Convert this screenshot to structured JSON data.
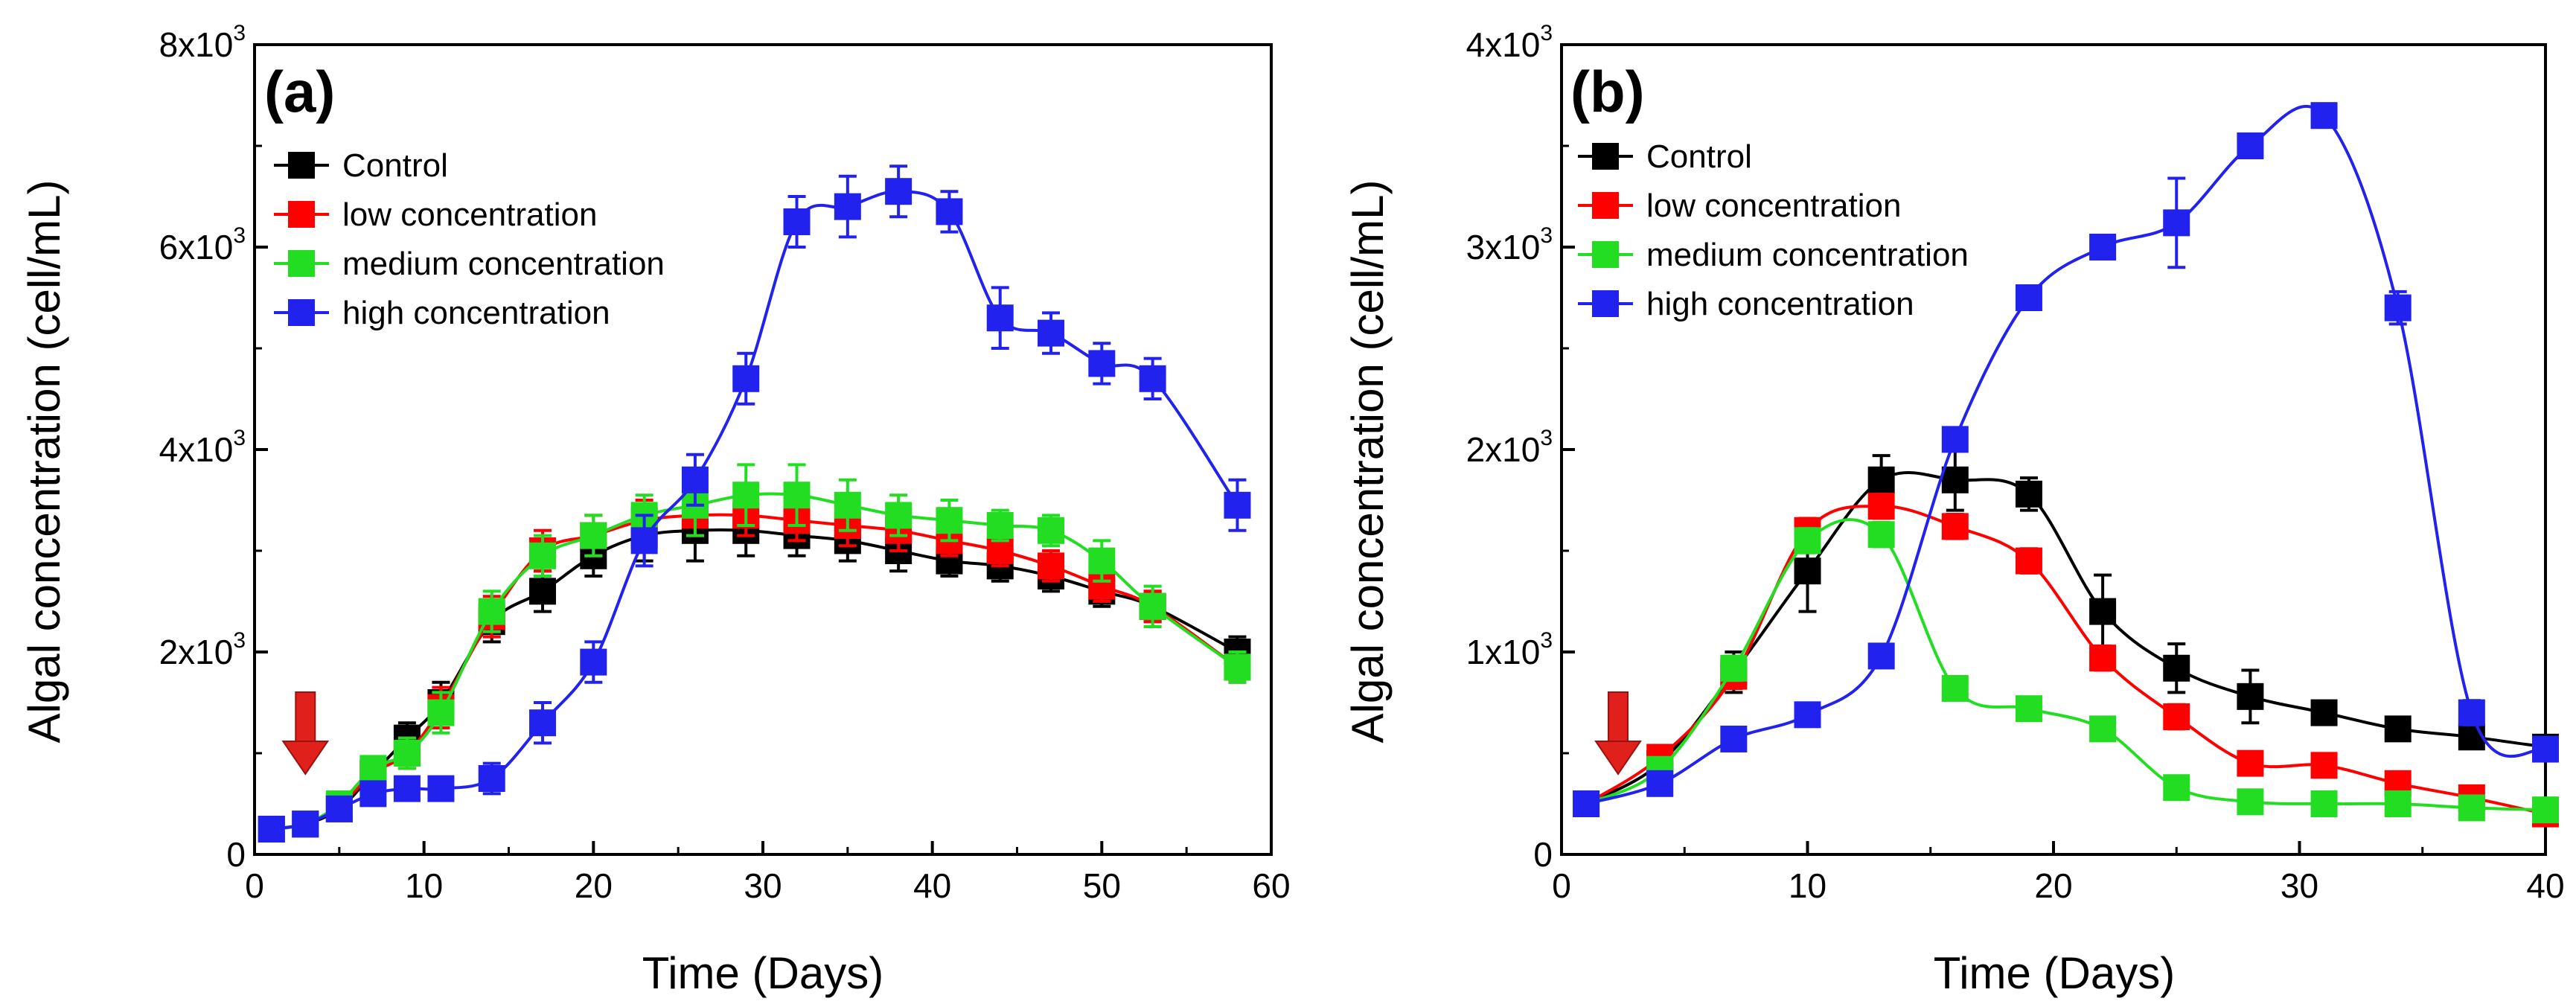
{
  "chart_data": [
    {
      "type": "line",
      "panel_label": "(a)",
      "xlabel": "Time (Days)",
      "ylabel": "Algal concentration (cell/mL)",
      "xlim": [
        0,
        60
      ],
      "ylim": [
        0,
        8000
      ],
      "x_ticks": [
        "0",
        "10",
        "20",
        "30",
        "40",
        "50",
        "60"
      ],
      "y_ticks": [
        {
          "value": 0,
          "mantissa": "0",
          "exp": ""
        },
        {
          "value": 2000,
          "mantissa": "2x10",
          "exp": "3"
        },
        {
          "value": 4000,
          "mantissa": "4x10",
          "exp": "3"
        },
        {
          "value": 6000,
          "mantissa": "6x10",
          "exp": "3"
        },
        {
          "value": 8000,
          "mantissa": "8x10",
          "exp": "3"
        }
      ],
      "grid": false,
      "legend_position": "top-left",
      "annotation": {
        "type": "arrow",
        "x": 3,
        "note": "red arrow pointing down"
      },
      "series": [
        {
          "name": "Control",
          "color": "#000000",
          "x": [
            1,
            3,
            5,
            7,
            9,
            11,
            14,
            17,
            20,
            23,
            26,
            29,
            32,
            35,
            38,
            41,
            44,
            47,
            50,
            53,
            58
          ],
          "y": [
            250,
            300,
            450,
            800,
            1150,
            1500,
            2300,
            2600,
            2950,
            3150,
            3200,
            3200,
            3150,
            3100,
            3000,
            2900,
            2850,
            2750,
            2600,
            2450,
            2000
          ],
          "err": [
            60,
            60,
            80,
            100,
            150,
            200,
            200,
            200,
            200,
            250,
            300,
            250,
            200,
            200,
            200,
            150,
            150,
            150,
            150,
            150,
            150
          ]
        },
        {
          "name": "low concentration",
          "color": "#ff0000",
          "x": [
            1,
            3,
            5,
            7,
            9,
            11,
            14,
            17,
            20,
            23,
            26,
            29,
            32,
            35,
            38,
            41,
            44,
            47,
            50,
            53,
            58
          ],
          "y": [
            250,
            300,
            480,
            800,
            1000,
            1450,
            2350,
            3000,
            3150,
            3300,
            3350,
            3350,
            3300,
            3250,
            3200,
            3100,
            3000,
            2850,
            2650,
            2450,
            1850
          ],
          "err": [
            60,
            60,
            80,
            100,
            150,
            200,
            200,
            200,
            200,
            200,
            200,
            200,
            200,
            200,
            200,
            150,
            150,
            150,
            150,
            150,
            150
          ]
        },
        {
          "name": "medium concentration",
          "color": "#22dd22",
          "x": [
            1,
            3,
            5,
            7,
            9,
            11,
            14,
            17,
            20,
            23,
            26,
            29,
            32,
            35,
            38,
            41,
            44,
            47,
            50,
            53,
            58
          ],
          "y": [
            250,
            300,
            500,
            850,
            1000,
            1400,
            2400,
            2950,
            3150,
            3350,
            3450,
            3550,
            3550,
            3450,
            3350,
            3300,
            3250,
            3200,
            2900,
            2450,
            1850
          ],
          "err": [
            60,
            60,
            80,
            100,
            150,
            200,
            200,
            200,
            200,
            200,
            300,
            300,
            300,
            250,
            200,
            200,
            150,
            150,
            200,
            200,
            150
          ]
        },
        {
          "name": "high concentration",
          "color": "#2222ee",
          "x": [
            1,
            3,
            5,
            7,
            9,
            11,
            14,
            17,
            20,
            23,
            26,
            29,
            32,
            35,
            38,
            41,
            44,
            47,
            50,
            53,
            58
          ],
          "y": [
            250,
            300,
            450,
            600,
            650,
            650,
            750,
            1300,
            1900,
            3100,
            3700,
            4700,
            6250,
            6400,
            6550,
            6350,
            5300,
            5150,
            4850,
            4700,
            3450
          ],
          "err": [
            60,
            60,
            80,
            100,
            100,
            100,
            150,
            200,
            200,
            250,
            250,
            250,
            250,
            300,
            250,
            200,
            300,
            200,
            200,
            200,
            250
          ]
        }
      ]
    },
    {
      "type": "line",
      "panel_label": "(b)",
      "xlabel": "Time (Days)",
      "ylabel": "Algal concentration (cell/mL)",
      "xlim": [
        0,
        40
      ],
      "ylim": [
        0,
        4000
      ],
      "x_ticks": [
        "0",
        "10",
        "20",
        "30",
        "40"
      ],
      "y_ticks": [
        {
          "value": 0,
          "mantissa": "0",
          "exp": ""
        },
        {
          "value": 1000,
          "mantissa": "1x10",
          "exp": "3"
        },
        {
          "value": 2000,
          "mantissa": "2x10",
          "exp": "3"
        },
        {
          "value": 3000,
          "mantissa": "3x10",
          "exp": "3"
        },
        {
          "value": 4000,
          "mantissa": "4x10",
          "exp": "3"
        }
      ],
      "grid": false,
      "legend_position": "top-left",
      "annotation": {
        "type": "arrow",
        "x": 2.3,
        "note": "red arrow pointing down"
      },
      "series": [
        {
          "name": "Control",
          "color": "#000000",
          "x": [
            1,
            4,
            7,
            10,
            13,
            16,
            19,
            22,
            25,
            28,
            31,
            34,
            37,
            40
          ],
          "y": [
            250,
            450,
            900,
            1400,
            1850,
            1850,
            1780,
            1200,
            920,
            780,
            700,
            620,
            580,
            530
          ],
          "err": [
            40,
            80,
            100,
            200,
            120,
            150,
            80,
            180,
            120,
            130,
            40,
            40,
            40,
            40
          ]
        },
        {
          "name": "low concentration",
          "color": "#ff0000",
          "x": [
            1,
            4,
            7,
            10,
            13,
            16,
            19,
            22,
            25,
            28,
            31,
            34,
            37,
            40
          ],
          "y": [
            250,
            480,
            880,
            1600,
            1720,
            1620,
            1450,
            970,
            680,
            450,
            440,
            350,
            280,
            200
          ],
          "err": [
            40,
            50,
            60,
            60,
            60,
            60,
            60,
            60,
            60,
            40,
            40,
            40,
            40,
            40
          ]
        },
        {
          "name": "medium concentration",
          "color": "#22dd22",
          "x": [
            1,
            4,
            7,
            10,
            13,
            16,
            19,
            22,
            25,
            28,
            31,
            34,
            37,
            40
          ],
          "y": [
            250,
            420,
            920,
            1550,
            1580,
            820,
            720,
            620,
            330,
            260,
            250,
            250,
            230,
            220
          ],
          "err": [
            40,
            50,
            60,
            60,
            60,
            40,
            40,
            40,
            40,
            40,
            40,
            40,
            40,
            40
          ]
        },
        {
          "name": "high concentration",
          "color": "#2222ee",
          "x": [
            1,
            4,
            7,
            10,
            13,
            16,
            19,
            22,
            25,
            28,
            31,
            34,
            37,
            40
          ],
          "y": [
            250,
            350,
            570,
            690,
            980,
            2050,
            2750,
            3000,
            3120,
            3500,
            3650,
            2700,
            700,
            520
          ],
          "err": [
            40,
            40,
            40,
            40,
            40,
            40,
            40,
            40,
            220,
            40,
            40,
            80,
            60,
            40
          ]
        }
      ]
    }
  ]
}
